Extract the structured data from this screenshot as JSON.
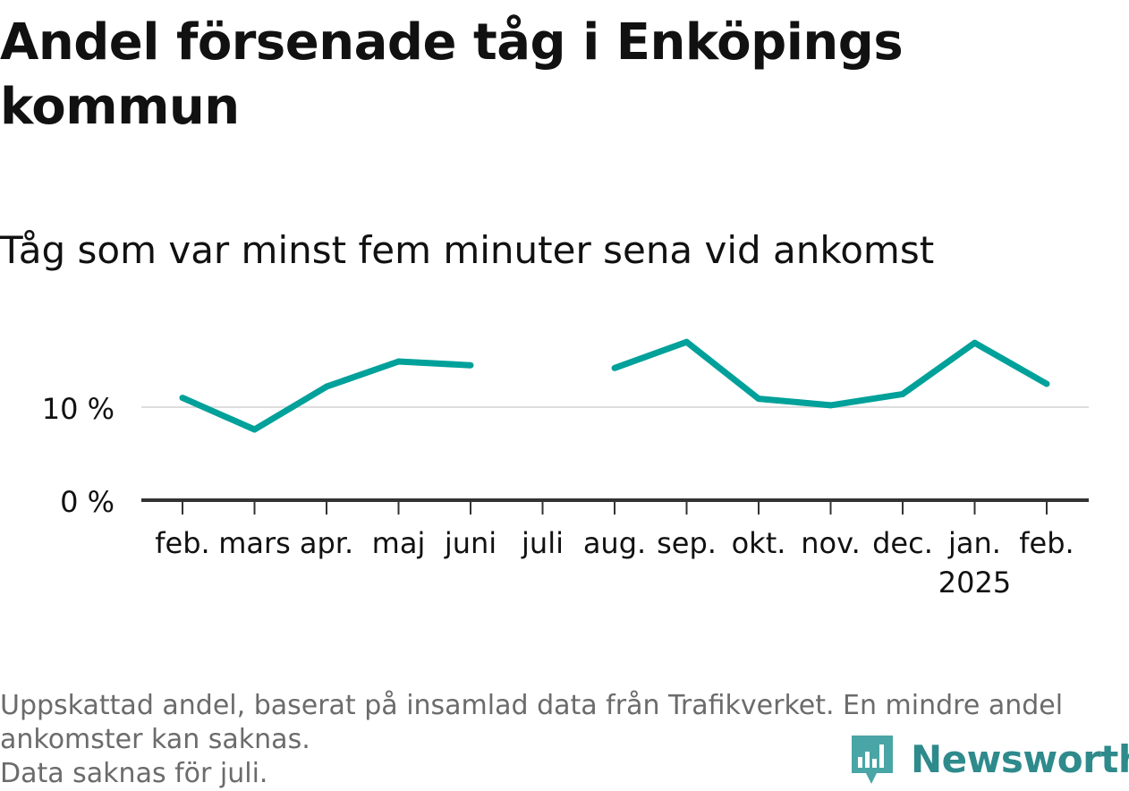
{
  "title": "Andel försenade tåg i Enköpings kommun",
  "subtitle": "Tåg som var minst fem minuter sena vid ankomst",
  "footnote": {
    "line1": "Uppskattad andel, baserat på insamlad data från Trafikverket. En mindre andel",
    "line2": "ankomster kan saknas.",
    "line3": "Data saknas för juli."
  },
  "logo": {
    "text": "Newsworthy",
    "icon": "newsworthy-logo-icon",
    "color": "#2f8a8c"
  },
  "chart_data": {
    "type": "line",
    "categories": [
      "feb.",
      "mars",
      "apr.",
      "maj",
      "juni",
      "juli",
      "aug.",
      "sep.",
      "okt.",
      "nov.",
      "dec.",
      "jan.",
      "feb."
    ],
    "year_labels": [
      "",
      "",
      "",
      "",
      "",
      "",
      "",
      "",
      "",
      "",
      "",
      "2025",
      ""
    ],
    "values": [
      11.0,
      7.6,
      12.2,
      14.9,
      14.5,
      null,
      14.2,
      17.0,
      10.9,
      10.2,
      11.4,
      16.9,
      12.5
    ],
    "yticks": [
      0,
      10
    ],
    "ytick_labels": [
      "0 %",
      "10 %"
    ],
    "ylim": [
      0,
      20
    ],
    "color": "#00a19a",
    "gridline_color": "#dddddd",
    "axis_color": "#333333"
  }
}
